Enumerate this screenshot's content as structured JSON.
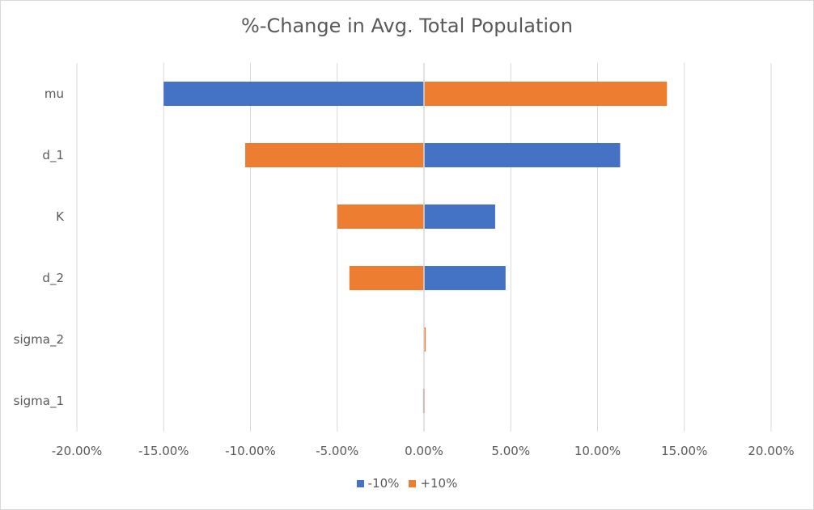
{
  "chart_data": {
    "type": "bar",
    "orientation": "horizontal",
    "title": "%-Change in Avg. Total Population",
    "categories": [
      "mu",
      "d_1",
      "K",
      "d_2",
      "sigma_2",
      "sigma_1"
    ],
    "series": [
      {
        "name": "-10%",
        "color": "#4472c4",
        "values": [
          -15.0,
          11.3,
          4.1,
          4.7,
          0.0,
          -0.05
        ]
      },
      {
        "name": "+10%",
        "color": "#ed7d31",
        "values": [
          14.0,
          -10.3,
          -5.0,
          -4.3,
          0.1,
          0.05
        ]
      }
    ],
    "xlim": [
      -20,
      20
    ],
    "xticks": [
      -20,
      -15,
      -10,
      -5,
      0,
      5,
      10,
      15,
      20
    ],
    "xtick_labels": [
      "-20.00%",
      "-15.00%",
      "-10.00%",
      "-5.00%",
      "0.00%",
      "5.00%",
      "10.00%",
      "15.00%",
      "20.00%"
    ],
    "grid": true,
    "legend_position": "bottom"
  }
}
